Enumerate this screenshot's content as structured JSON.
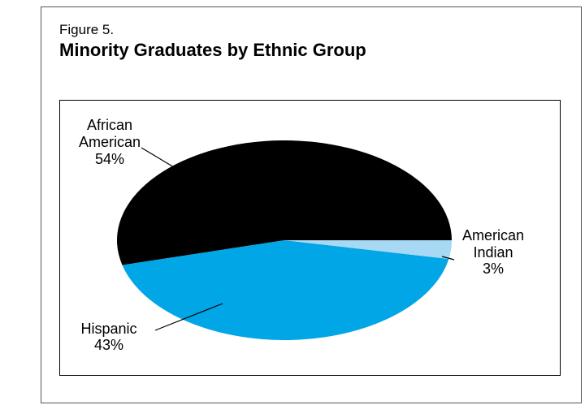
{
  "figure_number": "Figure 5.",
  "chart_data": {
    "type": "pie",
    "title": "Minority Graduates by Ethnic Group",
    "slices": [
      {
        "label_lines": [
          "African",
          "American",
          "54%"
        ],
        "value": 54,
        "color": "#000000"
      },
      {
        "label_lines": [
          "Hispanic",
          "43%"
        ],
        "value": 43,
        "color": "#00a6e6"
      },
      {
        "label_lines": [
          "American",
          "Indian",
          "3%"
        ],
        "value": 3,
        "color": "#a7d8f4"
      }
    ]
  }
}
